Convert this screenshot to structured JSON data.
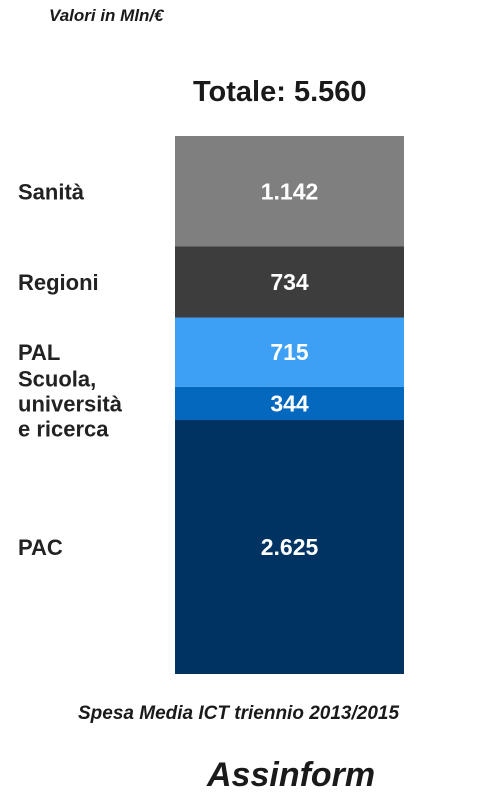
{
  "header": {
    "units": "Valori in Mln/€",
    "total": "Totale: 5.560"
  },
  "footer": {
    "caption": "Spesa Media ICT triennio 2013/2015",
    "brand": "Assinform"
  },
  "chart_data": {
    "type": "bar",
    "stacked": true,
    "orientation": "vertical",
    "categories": [
      "PAC",
      "Scuola,\nuniversità\ne ricerca",
      "PAL",
      "Regioni",
      "Sanità"
    ],
    "values": [
      2625,
      344,
      715,
      734,
      1142
    ],
    "value_labels": [
      "2.625",
      "344",
      "715",
      "734",
      "1.142"
    ],
    "colors": [
      "#003262",
      "#0468bf",
      "#3ea0f5",
      "#3d3d3d",
      "#7f7f7f"
    ],
    "ylim": [
      0,
      5560
    ],
    "grid": false
  }
}
